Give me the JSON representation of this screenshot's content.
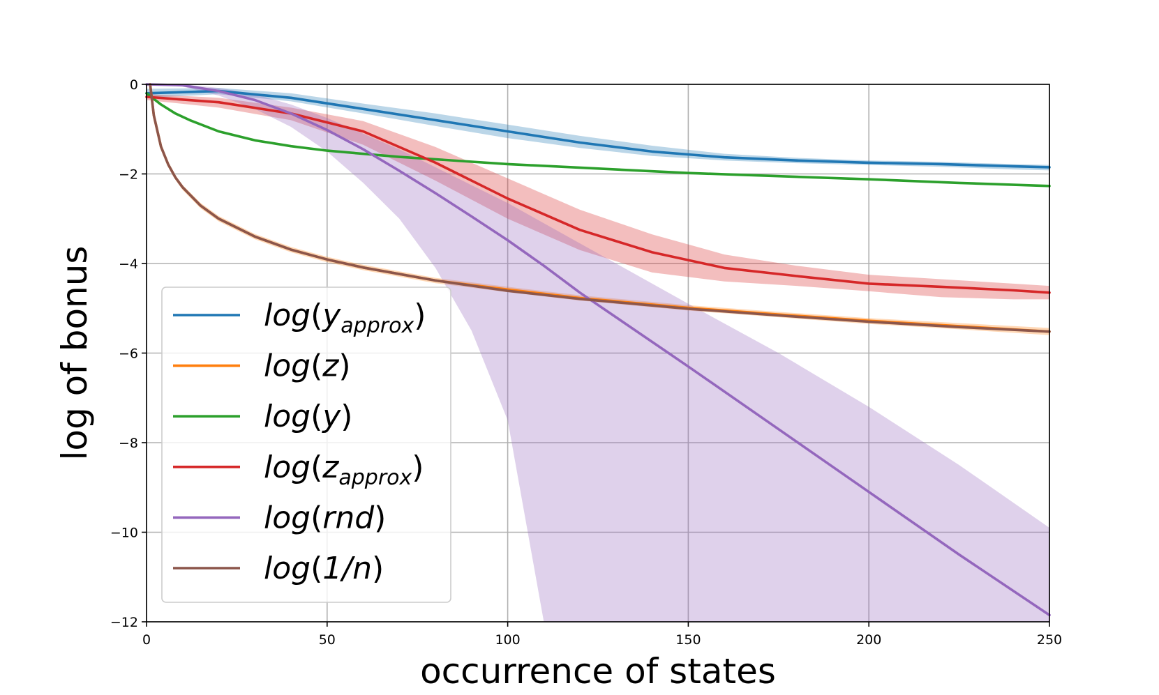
{
  "chart_data": {
    "type": "line",
    "title": "",
    "xlabel": "occurrence of states",
    "ylabel": "log of bonus",
    "xlim": [
      0,
      250
    ],
    "ylim": [
      -12,
      0
    ],
    "xticks": [
      0,
      50,
      100,
      150,
      200,
      250
    ],
    "yticks": [
      0,
      -2,
      -4,
      -6,
      -8,
      -10,
      -12
    ],
    "xtick_labels": [
      "0",
      "50",
      "100",
      "150",
      "200",
      "250"
    ],
    "ytick_labels": [
      "0",
      "−2",
      "−4",
      "−6",
      "−8",
      "−10",
      "−12"
    ],
    "grid": true,
    "legend_position": "lower-left",
    "series": [
      {
        "name": "log(y_approx)",
        "legend_base": "log",
        "legend_var": "y",
        "legend_sub": "approx",
        "color": "#1f77b4",
        "x": [
          0,
          20,
          40,
          60,
          80,
          100,
          120,
          140,
          160,
          180,
          200,
          220,
          240,
          250
        ],
        "y": [
          -0.2,
          -0.15,
          -0.3,
          -0.55,
          -0.8,
          -1.05,
          -1.3,
          -1.5,
          -1.63,
          -1.7,
          -1.75,
          -1.78,
          -1.83,
          -1.85
        ],
        "lower": [
          -0.3,
          -0.22,
          -0.38,
          -0.65,
          -0.93,
          -1.2,
          -1.42,
          -1.6,
          -1.7,
          -1.76,
          -1.8,
          -1.84,
          -1.9,
          -1.92
        ],
        "upper": [
          -0.1,
          -0.08,
          -0.2,
          -0.43,
          -0.65,
          -0.9,
          -1.15,
          -1.37,
          -1.55,
          -1.64,
          -1.7,
          -1.73,
          -1.78,
          -1.8
        ]
      },
      {
        "name": "log(z)",
        "legend_base": "log",
        "legend_var": "z",
        "legend_sub": "",
        "color": "#ff7f0e",
        "x": [
          1,
          2,
          4,
          6,
          8,
          10,
          15,
          20,
          30,
          40,
          50,
          60,
          80,
          100,
          120,
          150,
          175,
          200,
          225,
          250
        ],
        "y": [
          0,
          -0.69,
          -1.39,
          -1.79,
          -2.08,
          -2.3,
          -2.71,
          -3.0,
          -3.4,
          -3.69,
          -3.91,
          -4.09,
          -4.38,
          -4.58,
          -4.77,
          -4.99,
          -5.14,
          -5.28,
          -5.4,
          -5.52
        ],
        "lower": [
          -0.05,
          -0.74,
          -1.44,
          -1.84,
          -2.13,
          -2.36,
          -2.77,
          -3.06,
          -3.46,
          -3.75,
          -3.97,
          -4.15,
          -4.44,
          -4.64,
          -4.83,
          -5.05,
          -5.2,
          -5.35,
          -5.47,
          -5.6
        ],
        "upper": [
          0,
          -0.64,
          -1.34,
          -1.74,
          -2.03,
          -2.25,
          -2.65,
          -2.94,
          -3.34,
          -3.63,
          -3.85,
          -4.03,
          -4.32,
          -4.52,
          -4.71,
          -4.93,
          -5.08,
          -5.22,
          -5.33,
          -5.44
        ]
      },
      {
        "name": "log(y)",
        "legend_base": "log",
        "legend_var": "y",
        "legend_sub": "",
        "color": "#2ca02c",
        "x": [
          0,
          4,
          8,
          12,
          20,
          30,
          40,
          50,
          70,
          100,
          130,
          150,
          175,
          200,
          225,
          250
        ],
        "y": [
          -0.2,
          -0.45,
          -0.65,
          -0.8,
          -1.05,
          -1.25,
          -1.38,
          -1.48,
          -1.62,
          -1.78,
          -1.9,
          -1.98,
          -2.05,
          -2.12,
          -2.2,
          -2.27
        ],
        "lower": [
          -0.22,
          -0.47,
          -0.67,
          -0.82,
          -1.07,
          -1.27,
          -1.4,
          -1.5,
          -1.64,
          -1.8,
          -1.92,
          -2.0,
          -2.07,
          -2.14,
          -2.22,
          -2.29
        ],
        "upper": [
          -0.18,
          -0.43,
          -0.63,
          -0.78,
          -1.03,
          -1.23,
          -1.36,
          -1.46,
          -1.6,
          -1.76,
          -1.88,
          -1.96,
          -2.03,
          -2.1,
          -2.18,
          -2.25
        ]
      },
      {
        "name": "log(z_approx)",
        "legend_base": "log",
        "legend_var": "z",
        "legend_sub": "approx",
        "color": "#d62728",
        "x": [
          0,
          20,
          40,
          60,
          80,
          100,
          120,
          140,
          160,
          180,
          200,
          220,
          240,
          250
        ],
        "y": [
          -0.28,
          -0.4,
          -0.65,
          -1.05,
          -1.75,
          -2.55,
          -3.25,
          -3.75,
          -4.1,
          -4.28,
          -4.45,
          -4.52,
          -4.6,
          -4.65
        ],
        "lower": [
          -0.35,
          -0.52,
          -0.8,
          -1.35,
          -2.15,
          -3.0,
          -3.7,
          -4.2,
          -4.4,
          -4.5,
          -4.62,
          -4.75,
          -4.8,
          -4.8
        ],
        "upper": [
          -0.22,
          -0.3,
          -0.52,
          -0.82,
          -1.4,
          -2.1,
          -2.8,
          -3.35,
          -3.8,
          -4.05,
          -4.25,
          -4.35,
          -4.45,
          -4.5
        ]
      },
      {
        "name": "log(rnd)",
        "legend_base": "log",
        "legend_var": "rnd",
        "legend_sub": "",
        "color": "#9467bd",
        "x": [
          0,
          10,
          20,
          30,
          40,
          50,
          60,
          70,
          80,
          90,
          100,
          110,
          120,
          130,
          150,
          175,
          200,
          225,
          250
        ],
        "y": [
          0,
          -0.02,
          -0.15,
          -0.35,
          -0.65,
          -1.02,
          -1.45,
          -1.93,
          -2.43,
          -2.95,
          -3.48,
          -4.05,
          -4.65,
          -5.2,
          -6.3,
          -7.7,
          -9.1,
          -10.5,
          -11.85
        ],
        "lower": [
          0,
          -0.05,
          -0.25,
          -0.55,
          -0.95,
          -1.5,
          -2.2,
          -3.0,
          -4.1,
          -5.5,
          -7.5,
          -12,
          -12,
          -12,
          -12,
          -12,
          -12,
          -12,
          -12
        ],
        "upper": [
          0,
          0,
          -0.08,
          -0.22,
          -0.45,
          -0.75,
          -1.1,
          -1.45,
          -1.85,
          -2.25,
          -2.65,
          -3.1,
          -3.55,
          -4.0,
          -4.9,
          -6.0,
          -7.2,
          -8.5,
          -9.9
        ]
      },
      {
        "name": "log(1/n)",
        "legend_base": "log",
        "legend_var": "1/n",
        "legend_sub": "",
        "color": "#8c564b",
        "x": [
          1,
          2,
          4,
          6,
          8,
          10,
          15,
          20,
          30,
          40,
          50,
          60,
          80,
          100,
          120,
          150,
          175,
          200,
          225,
          250
        ],
        "y": [
          0,
          -0.69,
          -1.39,
          -1.79,
          -2.08,
          -2.3,
          -2.71,
          -3.0,
          -3.4,
          -3.69,
          -3.91,
          -4.09,
          -4.38,
          -4.61,
          -4.79,
          -5.01,
          -5.16,
          -5.3,
          -5.42,
          -5.52
        ]
      }
    ]
  }
}
